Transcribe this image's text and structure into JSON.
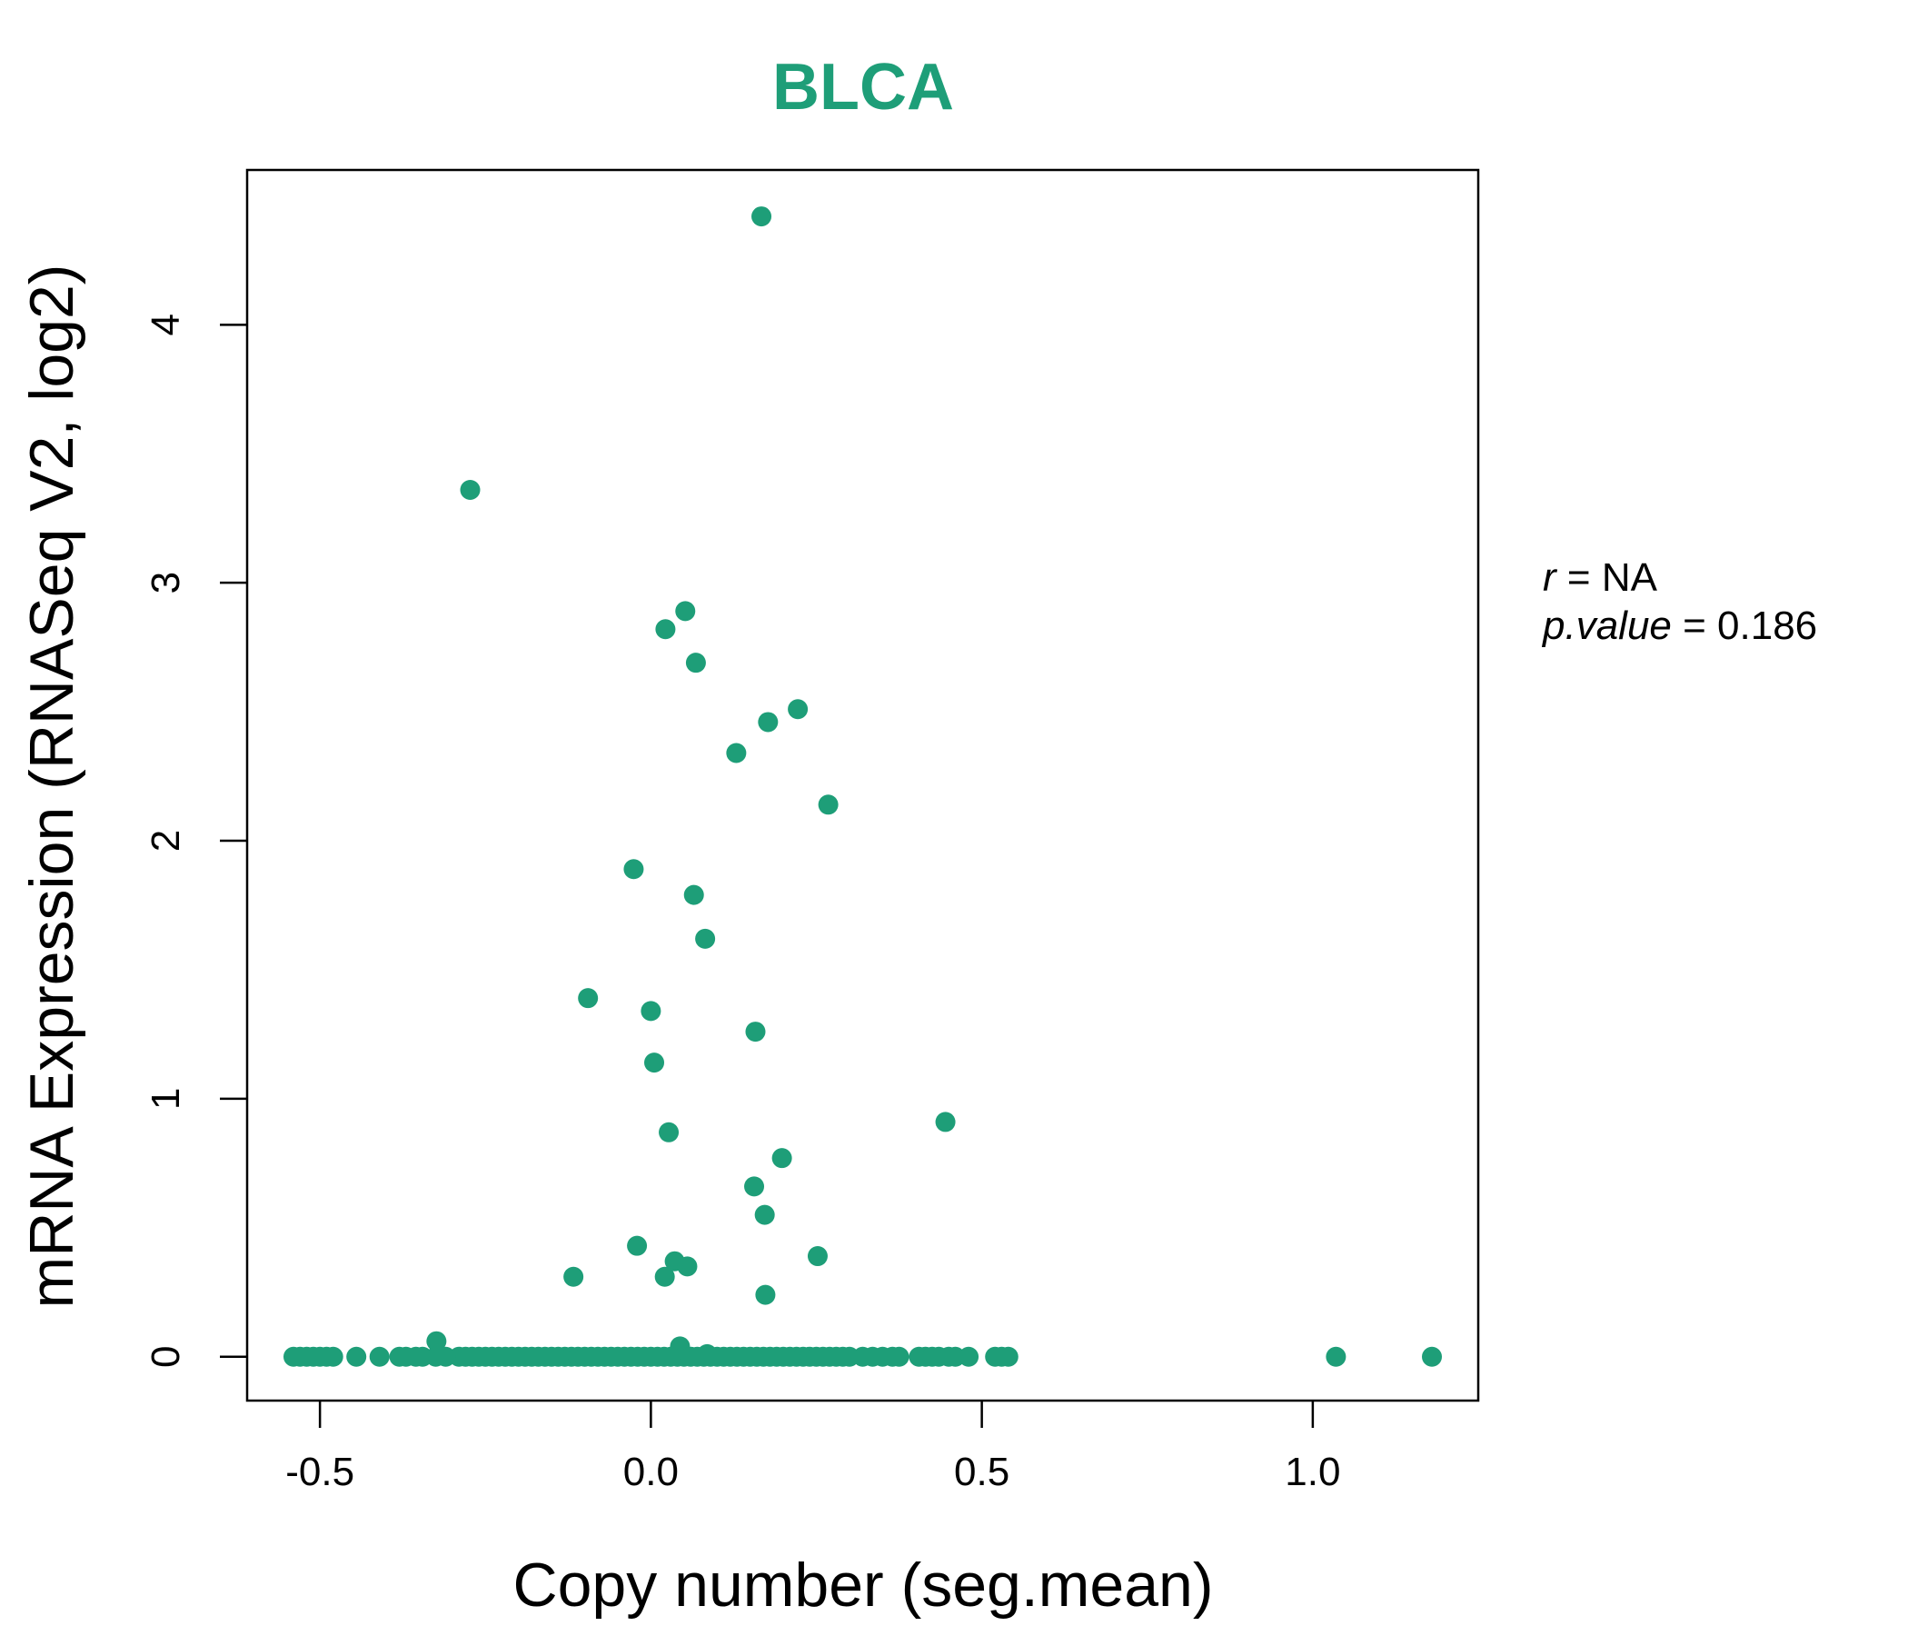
{
  "accent_color": "#1E9E78",
  "stats": {
    "r_label": "r",
    "r_value": "NA",
    "p_label": "p.value",
    "p_value": "0.186"
  },
  "chart_data": {
    "type": "scatter",
    "title": "BLCA",
    "xlabel": "Copy number (seg.mean)",
    "ylabel": "mRNA Expression (RNASeq V2, log2)",
    "xlim": [
      -0.61,
      1.25
    ],
    "ylim": [
      -0.17,
      4.6
    ],
    "xticks": [
      -0.5,
      0.0,
      0.5,
      1.0
    ],
    "xtick_labels": [
      "-0.5",
      "0.0",
      "0.5",
      "1.0"
    ],
    "yticks": [
      0,
      1,
      2,
      3,
      4
    ],
    "ytick_labels": [
      "0",
      "1",
      "2",
      "3",
      "4"
    ],
    "grid": false,
    "legend": "none",
    "series": [
      {
        "color": "#1E9E78",
        "points": [
          [
            0.167,
            4.42
          ],
          [
            -0.273,
            3.36
          ],
          [
            0.052,
            2.89
          ],
          [
            0.022,
            2.82
          ],
          [
            0.068,
            2.69
          ],
          [
            0.222,
            2.51
          ],
          [
            0.177,
            2.46
          ],
          [
            0.129,
            2.34
          ],
          [
            0.268,
            2.14
          ],
          [
            -0.026,
            1.89
          ],
          [
            0.065,
            1.79
          ],
          [
            0.082,
            1.62
          ],
          [
            -0.095,
            1.39
          ],
          [
            0.0,
            1.34
          ],
          [
            0.158,
            1.26
          ],
          [
            0.005,
            1.14
          ],
          [
            0.027,
            0.87
          ],
          [
            0.445,
            0.91
          ],
          [
            0.198,
            0.77
          ],
          [
            0.156,
            0.66
          ],
          [
            0.172,
            0.55
          ],
          [
            -0.021,
            0.43
          ],
          [
            0.036,
            0.37
          ],
          [
            0.055,
            0.35
          ],
          [
            0.252,
            0.39
          ],
          [
            -0.117,
            0.31
          ],
          [
            0.021,
            0.31
          ],
          [
            0.173,
            0.24
          ],
          [
            -0.324,
            0.06
          ],
          [
            0.044,
            0.04
          ],
          [
            0.085,
            0.01
          ],
          [
            -0.54,
            0
          ],
          [
            -0.53,
            0
          ],
          [
            -0.52,
            0
          ],
          [
            -0.51,
            0
          ],
          [
            -0.5,
            0
          ],
          [
            -0.49,
            0
          ],
          [
            -0.48,
            0
          ],
          [
            -0.445,
            0
          ],
          [
            -0.41,
            0
          ],
          [
            -0.38,
            0
          ],
          [
            -0.37,
            0
          ],
          [
            -0.355,
            0
          ],
          [
            -0.345,
            0
          ],
          [
            -0.325,
            0
          ],
          [
            -0.31,
            0
          ],
          [
            -0.29,
            0
          ],
          [
            -0.28,
            0
          ],
          [
            -0.27,
            0
          ],
          [
            -0.26,
            0
          ],
          [
            -0.25,
            0
          ],
          [
            -0.24,
            0
          ],
          [
            -0.23,
            0
          ],
          [
            -0.22,
            0
          ],
          [
            -0.21,
            0
          ],
          [
            -0.2,
            0
          ],
          [
            -0.19,
            0
          ],
          [
            -0.18,
            0
          ],
          [
            -0.17,
            0
          ],
          [
            -0.16,
            0
          ],
          [
            -0.15,
            0
          ],
          [
            -0.14,
            0
          ],
          [
            -0.13,
            0
          ],
          [
            -0.12,
            0
          ],
          [
            -0.11,
            0
          ],
          [
            -0.1,
            0
          ],
          [
            -0.09,
            0
          ],
          [
            -0.08,
            0
          ],
          [
            -0.07,
            0
          ],
          [
            -0.06,
            0
          ],
          [
            -0.05,
            0
          ],
          [
            -0.04,
            0
          ],
          [
            -0.03,
            0
          ],
          [
            -0.02,
            0
          ],
          [
            -0.01,
            0
          ],
          [
            0.0,
            0
          ],
          [
            0.01,
            0
          ],
          [
            0.02,
            0
          ],
          [
            0.03,
            0
          ],
          [
            0.04,
            0
          ],
          [
            0.05,
            0
          ],
          [
            0.06,
            0
          ],
          [
            0.07,
            0
          ],
          [
            0.08,
            0
          ],
          [
            0.09,
            0
          ],
          [
            0.1,
            0
          ],
          [
            0.11,
            0
          ],
          [
            0.12,
            0
          ],
          [
            0.13,
            0
          ],
          [
            0.14,
            0
          ],
          [
            0.15,
            0
          ],
          [
            0.16,
            0
          ],
          [
            0.17,
            0
          ],
          [
            0.18,
            0
          ],
          [
            0.19,
            0
          ],
          [
            0.2,
            0
          ],
          [
            0.21,
            0
          ],
          [
            0.22,
            0
          ],
          [
            0.23,
            0
          ],
          [
            0.24,
            0
          ],
          [
            0.25,
            0
          ],
          [
            0.26,
            0
          ],
          [
            0.27,
            0
          ],
          [
            0.28,
            0
          ],
          [
            0.29,
            0
          ],
          [
            0.3,
            0
          ],
          [
            0.32,
            0
          ],
          [
            0.335,
            0
          ],
          [
            0.35,
            0
          ],
          [
            0.365,
            0
          ],
          [
            0.375,
            0
          ],
          [
            0.405,
            0
          ],
          [
            0.415,
            0
          ],
          [
            0.425,
            0
          ],
          [
            0.435,
            0
          ],
          [
            0.45,
            0
          ],
          [
            0.46,
            0
          ],
          [
            0.48,
            0
          ],
          [
            0.52,
            0
          ],
          [
            0.53,
            0
          ],
          [
            0.54,
            0
          ],
          [
            1.035,
            0
          ],
          [
            1.18,
            0
          ]
        ]
      }
    ]
  }
}
